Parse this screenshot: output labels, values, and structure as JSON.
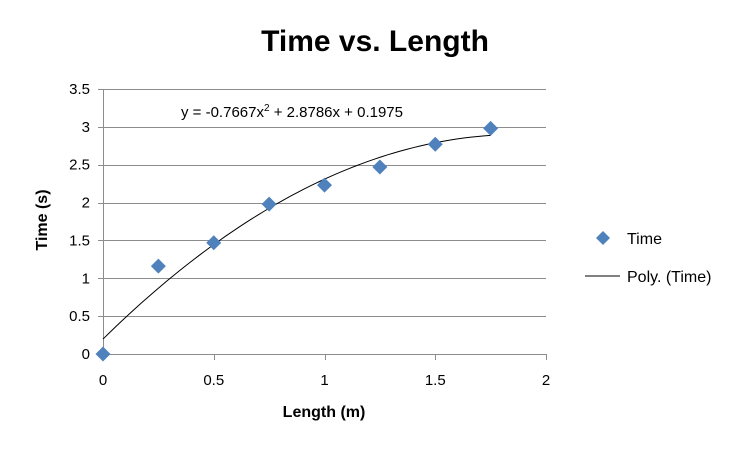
{
  "chart_data": {
    "type": "scatter",
    "title": "Time vs. Length",
    "xlabel": "Length (m)",
    "ylabel": "Time (s)",
    "xlim": [
      0,
      2
    ],
    "ylim": [
      0,
      3.5
    ],
    "x_ticks": [
      "0",
      "0.5",
      "1",
      "1.5",
      "2"
    ],
    "y_ticks": [
      "0",
      "0.5",
      "1",
      "1.5",
      "2",
      "2.5",
      "3",
      "3.5"
    ],
    "grid": "horizontal",
    "legend_position": "right",
    "series": [
      {
        "name": "Time",
        "marker": "diamond",
        "color": "#4f81bd",
        "points": [
          {
            "x": 0,
            "y": 0
          },
          {
            "x": 0.25,
            "y": 1.16
          },
          {
            "x": 0.5,
            "y": 1.47
          },
          {
            "x": 0.75,
            "y": 1.98
          },
          {
            "x": 1.0,
            "y": 2.23
          },
          {
            "x": 1.25,
            "y": 2.47
          },
          {
            "x": 1.5,
            "y": 2.77
          },
          {
            "x": 1.75,
            "y": 2.98
          }
        ]
      }
    ],
    "trendline": {
      "name": "Poly. (Time)",
      "type": "polynomial",
      "order": 2,
      "coefficients": {
        "a": -0.7667,
        "b": 2.8786,
        "c": 0.1975
      },
      "x_range": [
        0,
        1.75
      ],
      "color": "#000000",
      "equation_text": {
        "prefix": "y = -0.7667x",
        "exponent": "2",
        "suffix": " + 2.8786x + 0.1975"
      }
    }
  }
}
